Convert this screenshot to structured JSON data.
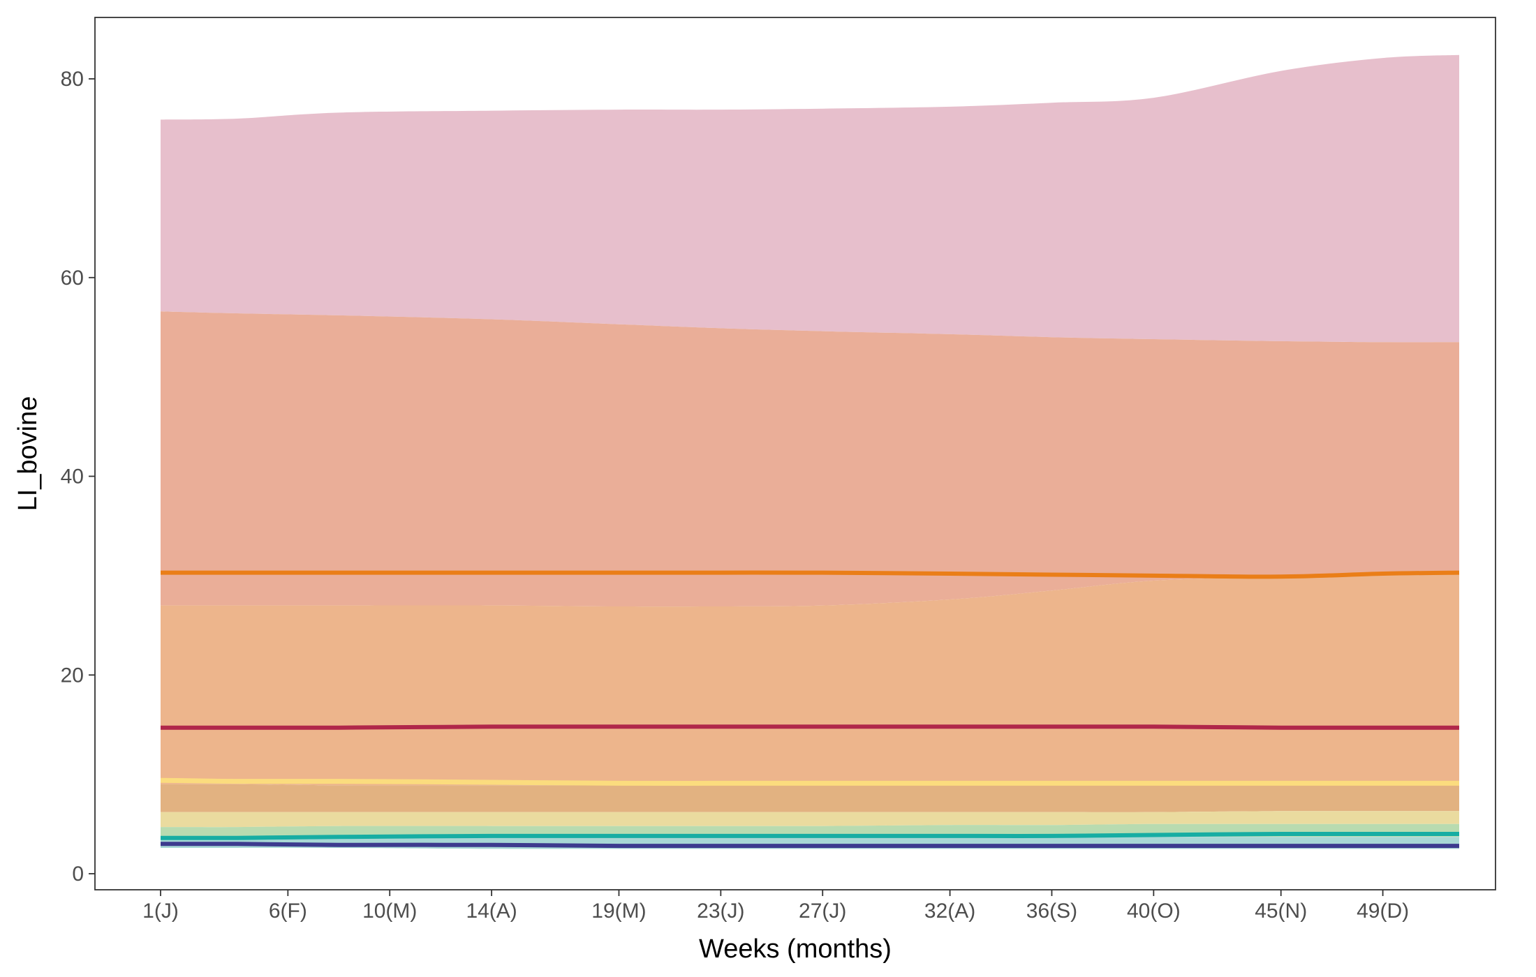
{
  "chart_data": {
    "type": "area",
    "title": "",
    "xlabel": "Weeks (months)",
    "ylabel": "LI_bovine",
    "xlim": [
      1,
      52
    ],
    "ylim": [
      0,
      85
    ],
    "x_ticks": [
      {
        "week": 1,
        "label": "1(J)"
      },
      {
        "week": 6,
        "label": "6(F)"
      },
      {
        "week": 10,
        "label": "10(M)"
      },
      {
        "week": 14,
        "label": "14(A)"
      },
      {
        "week": 19,
        "label": "19(M)"
      },
      {
        "week": 23,
        "label": "23(J)"
      },
      {
        "week": 27,
        "label": "27(J)"
      },
      {
        "week": 32,
        "label": "32(A)"
      },
      {
        "week": 36,
        "label": "36(S)"
      },
      {
        "week": 40,
        "label": "40(O)"
      },
      {
        "week": 45,
        "label": "45(N)"
      },
      {
        "week": 49,
        "label": "49(D)"
      }
    ],
    "y_ticks": [
      0,
      20,
      40,
      60,
      80
    ],
    "grid": false,
    "x": [
      1,
      4,
      8,
      14,
      19,
      23,
      27,
      32,
      36,
      40,
      45,
      49,
      52
    ],
    "bands": [
      {
        "name": "band-pink",
        "color": "#e7bfcc",
        "upper": [
          75.9,
          76.0,
          76.6,
          76.8,
          76.9,
          76.9,
          77.0,
          77.2,
          77.6,
          78.1,
          80.8,
          82.1,
          82.4
        ],
        "lower": [
          56.6,
          56.4,
          56.2,
          55.8,
          55.3,
          54.9,
          54.6,
          54.3,
          54.0,
          53.8,
          53.6,
          53.5,
          53.5
        ]
      },
      {
        "name": "band-salmon",
        "color": "#eaae98",
        "upper": [
          56.6,
          56.4,
          56.2,
          55.8,
          55.3,
          54.9,
          54.6,
          54.3,
          54.0,
          53.8,
          53.6,
          53.5,
          53.5
        ],
        "lower": [
          27.0,
          27.0,
          27.0,
          27.0,
          26.9,
          26.9,
          27.0,
          27.6,
          28.5,
          29.5,
          29.9,
          30.1,
          30.3
        ]
      },
      {
        "name": "band-light-orange",
        "color": "#edb58c",
        "upper": [
          27.0,
          27.0,
          27.0,
          27.0,
          26.9,
          26.9,
          27.0,
          27.6,
          28.5,
          29.5,
          29.9,
          30.1,
          30.3
        ],
        "lower": [
          9.0,
          9.0,
          8.9,
          8.9,
          8.9,
          8.9,
          8.9,
          8.9,
          8.9,
          8.9,
          8.9,
          8.9,
          8.9
        ]
      },
      {
        "name": "band-tan",
        "color": "#e2b281",
        "upper": [
          9.0,
          9.0,
          8.9,
          8.9,
          8.9,
          8.9,
          8.9,
          8.9,
          8.9,
          8.9,
          8.9,
          8.9,
          8.9
        ],
        "lower": [
          6.2,
          6.2,
          6.2,
          6.2,
          6.2,
          6.2,
          6.2,
          6.2,
          6.2,
          6.2,
          6.3,
          6.3,
          6.3
        ]
      },
      {
        "name": "band-pale-yellow",
        "color": "#eadb9f",
        "upper": [
          6.2,
          6.2,
          6.2,
          6.2,
          6.2,
          6.2,
          6.2,
          6.2,
          6.2,
          6.2,
          6.3,
          6.3,
          6.3
        ],
        "lower": [
          4.7,
          4.7,
          4.8,
          4.8,
          4.8,
          4.8,
          4.8,
          4.9,
          4.9,
          5.0,
          5.0,
          5.0,
          5.0
        ]
      },
      {
        "name": "band-pale-green",
        "color": "#b8dbb0",
        "upper": [
          4.7,
          4.7,
          4.8,
          4.8,
          4.8,
          4.8,
          4.8,
          4.9,
          4.9,
          5.0,
          5.0,
          5.0,
          5.0
        ],
        "lower": [
          3.4,
          3.4,
          3.5,
          3.6,
          3.6,
          3.6,
          3.6,
          3.6,
          3.6,
          3.7,
          3.7,
          3.7,
          3.7
        ]
      },
      {
        "name": "band-pale-teal",
        "color": "#a8d8d5",
        "upper": [
          3.4,
          3.4,
          3.5,
          3.6,
          3.6,
          3.6,
          3.6,
          3.6,
          3.6,
          3.7,
          3.7,
          3.7,
          3.7
        ],
        "lower": [
          2.6,
          2.6,
          2.6,
          2.5,
          2.5,
          2.5,
          2.5,
          2.5,
          2.5,
          2.5,
          2.5,
          2.5,
          2.5
        ]
      }
    ],
    "series": [
      {
        "name": "orange-line",
        "color": "#ea7e18",
        "width": 6,
        "values": [
          30.3,
          30.3,
          30.3,
          30.3,
          30.3,
          30.3,
          30.3,
          30.2,
          30.1,
          30.0,
          29.9,
          30.2,
          30.3
        ]
      },
      {
        "name": "crimson-line",
        "color": "#b0274a",
        "width": 6,
        "values": [
          14.7,
          14.7,
          14.7,
          14.8,
          14.8,
          14.8,
          14.8,
          14.8,
          14.8,
          14.8,
          14.7,
          14.7,
          14.7
        ]
      },
      {
        "name": "yellow-line",
        "color": "#fbdc7e",
        "width": 7,
        "values": [
          9.4,
          9.3,
          9.3,
          9.2,
          9.1,
          9.1,
          9.1,
          9.1,
          9.1,
          9.1,
          9.1,
          9.1,
          9.1
        ]
      },
      {
        "name": "teal-line",
        "color": "#16ada3",
        "width": 6,
        "values": [
          3.6,
          3.6,
          3.7,
          3.8,
          3.8,
          3.8,
          3.8,
          3.8,
          3.8,
          3.9,
          4.0,
          4.0,
          4.0
        ]
      },
      {
        "name": "navy-line",
        "color": "#3d3b8e",
        "width": 6,
        "values": [
          3.0,
          3.0,
          2.9,
          2.9,
          2.8,
          2.8,
          2.8,
          2.8,
          2.8,
          2.8,
          2.8,
          2.8,
          2.8
        ]
      }
    ]
  }
}
